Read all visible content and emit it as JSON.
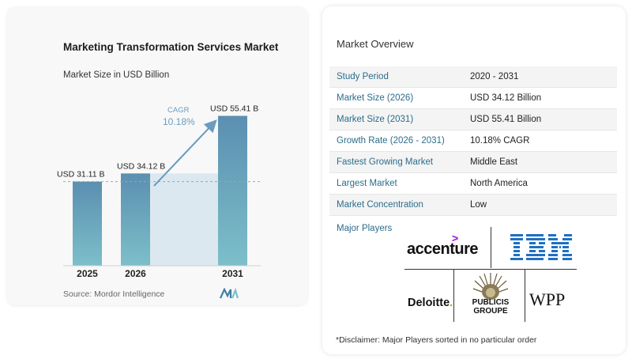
{
  "chart_data": {
    "type": "bar",
    "title": "Marketing Transformation Services Market",
    "subtitle": "Market Size in USD Billion",
    "categories": [
      "2025",
      "2026",
      "2031"
    ],
    "values": [
      31.11,
      34.12,
      55.41
    ],
    "value_labels": [
      "USD 31.11 B",
      "USD 34.12 B",
      "USD 55.41 B"
    ],
    "cagr_label": "CAGR",
    "cagr_value": "10.18%",
    "ylim": [
      0,
      60
    ],
    "grid": false,
    "colors": {
      "bar_top": "#5b8fb0",
      "bar_bottom": "#7cbfca",
      "projection_area": "#dce8ef",
      "arrow": "#6a9cbf",
      "cagr_text": "#6a9cbf"
    }
  },
  "source": "Source:  Mordor Intelligence",
  "overview": {
    "title": "Market Overview",
    "rows": [
      {
        "key": "Study Period",
        "value": "2020 - 2031"
      },
      {
        "key": "Market Size (2026)",
        "value": "USD 34.12 Billion"
      },
      {
        "key": "Market Size (2031)",
        "value": "USD 55.41 Billion"
      },
      {
        "key": "Growth Rate (2026 - 2031)",
        "value": "10.18% CAGR"
      },
      {
        "key": "Fastest Growing Market",
        "value": "Middle East"
      },
      {
        "key": "Largest Market",
        "value": "North America"
      },
      {
        "key": "Market Concentration",
        "value": "Low"
      }
    ],
    "key_color": "#2c6d8a"
  },
  "major_players": {
    "label": "Major Players",
    "logos": {
      "accenture": "accenture",
      "ibm": "IBM",
      "deloitte": "Deloitte",
      "deloitte_dot": ".",
      "publicis_line1": "PUBLICIS",
      "publicis_line2": "GROUPE",
      "wpp": "WPP"
    }
  },
  "disclaimer": "*Disclaimer: Major Players sorted in no particular order"
}
